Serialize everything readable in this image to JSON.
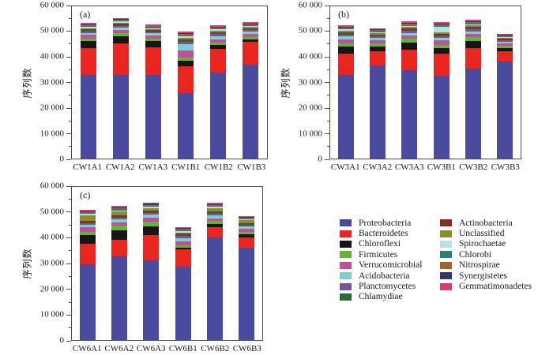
{
  "figure": {
    "background": "#ffffff",
    "ylabel": "序列数",
    "ytick_labels": [
      "0",
      "10 000",
      "20 000",
      "30 000",
      "40 000",
      "50 000",
      "60 000"
    ]
  },
  "palette": {
    "Proteobacteria": "#4a4a9e",
    "Bacteroidetes": "#e8261f",
    "Chloroflexi": "#161616",
    "Firmicutes": "#67b233",
    "Verrucomicrobial": "#c0509e",
    "Acidobacteria": "#7fcfcc",
    "Planctomycetes": "#7a52a0",
    "Chlamydiae": "#2a6b35",
    "Actinobacteria": "#8c2a26",
    "Unclassified": "#8d8b2e",
    "Spirochaetae": "#b8e0dd",
    "Chlorobi": "#2e7f7c",
    "Nitrospirae": "#a2632a",
    "Synergistetes": "#38327e",
    "Gemmatimonadetes": "#e83377"
  },
  "legend": {
    "columns": [
      [
        "Proteobacteria",
        "Bacteroidetes",
        "Chloroflexi",
        "Firmicutes",
        "Verrucomicrobial",
        "Acidobacteria",
        "Planctomycetes",
        "Chlamydiae"
      ],
      [
        "Actinobacteria",
        "Unclassified",
        "Spirochaetae",
        "Chlorobi",
        "Nitrospirae",
        "Synergistetes",
        "Gemmatimonadetes"
      ]
    ]
  },
  "chart_data": [
    {
      "type": "bar",
      "stacked": true,
      "panel_label": "(a)",
      "ylabel": "序列数",
      "ylim": [
        0,
        60000
      ],
      "ytick_step": 10000,
      "ytick_minor_step": 5000,
      "legend_position": "outside-right",
      "grid": false,
      "categories": [
        "CW1A1",
        "CW1A2",
        "CW1A3",
        "CW1B1",
        "CW1B2",
        "CW1B3"
      ],
      "series": [
        {
          "name": "Proteobacteria",
          "values": [
            33000,
            33100,
            33100,
            25900,
            33800,
            36900
          ]
        },
        {
          "name": "Bacteroidetes",
          "values": [
            10600,
            12400,
            10700,
            10600,
            9400,
            9200
          ]
        },
        {
          "name": "Chloroflexi",
          "values": [
            2700,
            2600,
            2400,
            2100,
            1500,
            1000
          ]
        },
        {
          "name": "Firmicutes",
          "values": [
            1100,
            1400,
            1200,
            1200,
            1000,
            900
          ]
        },
        {
          "name": "Verrucomicrobial",
          "values": [
            1300,
            1200,
            1100,
            2800,
            1400,
            1100
          ]
        },
        {
          "name": "Acidobacteria",
          "values": [
            900,
            900,
            800,
            2500,
            1200,
            900
          ]
        },
        {
          "name": "Planctomycetes",
          "values": [
            600,
            600,
            550,
            900,
            700,
            600
          ]
        },
        {
          "name": "Chlamydiae",
          "values": [
            350,
            400,
            350,
            500,
            400,
            350
          ]
        },
        {
          "name": "Actinobacteria",
          "values": [
            450,
            500,
            450,
            600,
            500,
            450
          ]
        },
        {
          "name": "Unclassified",
          "values": [
            450,
            450,
            400,
            550,
            500,
            450
          ]
        },
        {
          "name": "Spirochaetae",
          "values": [
            400,
            450,
            400,
            500,
            500,
            450
          ]
        },
        {
          "name": "Chlorobi",
          "values": [
            350,
            350,
            350,
            450,
            400,
            350
          ]
        },
        {
          "name": "Nitrospirae",
          "values": [
            300,
            350,
            300,
            400,
            350,
            300
          ]
        },
        {
          "name": "Synergistetes",
          "values": [
            300,
            300,
            250,
            350,
            300,
            250
          ]
        },
        {
          "name": "Gemmatimonadetes",
          "values": [
            700,
            500,
            450,
            650,
            550,
            500
          ]
        }
      ]
    },
    {
      "type": "bar",
      "stacked": true,
      "panel_label": "(b)",
      "ylabel": "序列数",
      "ylim": [
        0,
        60000
      ],
      "ytick_step": 10000,
      "ytick_minor_step": 5000,
      "grid": false,
      "categories": [
        "CW3A1",
        "CW3A2",
        "CW3A3",
        "CW3B1",
        "CW3B2",
        "CW3B3"
      ],
      "series": [
        {
          "name": "Proteobacteria",
          "values": [
            32900,
            36700,
            34700,
            32600,
            35600,
            38200
          ]
        },
        {
          "name": "Bacteroidetes",
          "values": [
            8600,
            5500,
            8100,
            8900,
            8000,
            4200
          ]
        },
        {
          "name": "Chloroflexi",
          "values": [
            2500,
            1900,
            2900,
            2100,
            2700,
            1200
          ]
        },
        {
          "name": "Firmicutes",
          "values": [
            1300,
            1200,
            1500,
            1200,
            1500,
            800
          ]
        },
        {
          "name": "Verrucomicrobial",
          "values": [
            1700,
            1300,
            1400,
            1700,
            1400,
            900
          ]
        },
        {
          "name": "Acidobacteria",
          "values": [
            1200,
            900,
            1000,
            1000,
            1000,
            700
          ]
        },
        {
          "name": "Planctomycetes",
          "values": [
            700,
            600,
            700,
            700,
            700,
            500
          ]
        },
        {
          "name": "Chlamydiae",
          "values": [
            400,
            350,
            400,
            400,
            400,
            300
          ]
        },
        {
          "name": "Actinobacteria",
          "values": [
            550,
            500,
            550,
            550,
            600,
            400
          ]
        },
        {
          "name": "Unclassified",
          "values": [
            550,
            500,
            550,
            550,
            600,
            400
          ]
        },
        {
          "name": "Spirochaetae",
          "values": [
            500,
            450,
            500,
            2300,
            500,
            400
          ]
        },
        {
          "name": "Chlorobi",
          "values": [
            400,
            350,
            400,
            450,
            450,
            300
          ]
        },
        {
          "name": "Nitrospirae",
          "values": [
            350,
            350,
            350,
            400,
            400,
            250
          ]
        },
        {
          "name": "Synergistetes",
          "values": [
            300,
            300,
            300,
            350,
            350,
            250
          ]
        },
        {
          "name": "Gemmatimonadetes",
          "values": [
            550,
            450,
            700,
            600,
            500,
            350
          ]
        }
      ]
    },
    {
      "type": "bar",
      "stacked": true,
      "panel_label": "(c)",
      "ylabel": "序列数",
      "ylim": [
        0,
        60000
      ],
      "ytick_step": 10000,
      "ytick_minor_step": 5000,
      "grid": false,
      "categories": [
        "CW6A1",
        "CW6A2",
        "CW6A3",
        "CW6B1",
        "CW6B2",
        "CW6B3"
      ],
      "series": [
        {
          "name": "Proteobacteria",
          "values": [
            29700,
            32900,
            31100,
            28800,
            40100,
            36200
          ]
        },
        {
          "name": "Bacteroidetes",
          "values": [
            8000,
            6400,
            9900,
            6800,
            4200,
            4100
          ]
        },
        {
          "name": "Chloroflexi",
          "values": [
            3300,
            3800,
            3700,
            700,
            1100,
            1300
          ]
        },
        {
          "name": "Firmicutes",
          "values": [
            1400,
            1600,
            1600,
            900,
            1200,
            900
          ]
        },
        {
          "name": "Verrucomicrobial",
          "values": [
            1700,
            1500,
            1800,
            1500,
            1100,
            1000
          ]
        },
        {
          "name": "Acidobacteria",
          "values": [
            1000,
            1000,
            1000,
            1300,
            1300,
            900
          ]
        },
        {
          "name": "Planctomycetes",
          "values": [
            700,
            700,
            700,
            800,
            650,
            600
          ]
        },
        {
          "name": "Chlamydiae",
          "values": [
            400,
            400,
            400,
            400,
            350,
            350
          ]
        },
        {
          "name": "Actinobacteria",
          "values": [
            600,
            600,
            600,
            500,
            450,
            450
          ]
        },
        {
          "name": "Unclassified",
          "values": [
            2200,
            1500,
            900,
            500,
            1100,
            1100
          ]
        },
        {
          "name": "Spirochaetae",
          "values": [
            500,
            500,
            500,
            600,
            600,
            450
          ]
        },
        {
          "name": "Chlorobi",
          "values": [
            400,
            450,
            450,
            400,
            400,
            350
          ]
        },
        {
          "name": "Nitrospirae",
          "values": [
            350,
            400,
            400,
            350,
            350,
            300
          ]
        },
        {
          "name": "Synergistetes",
          "values": [
            300,
            350,
            350,
            250,
            300,
            250
          ]
        },
        {
          "name": "Gemmatimonadetes",
          "values": [
            450,
            600,
            600,
            400,
            500,
            400
          ]
        }
      ]
    }
  ]
}
